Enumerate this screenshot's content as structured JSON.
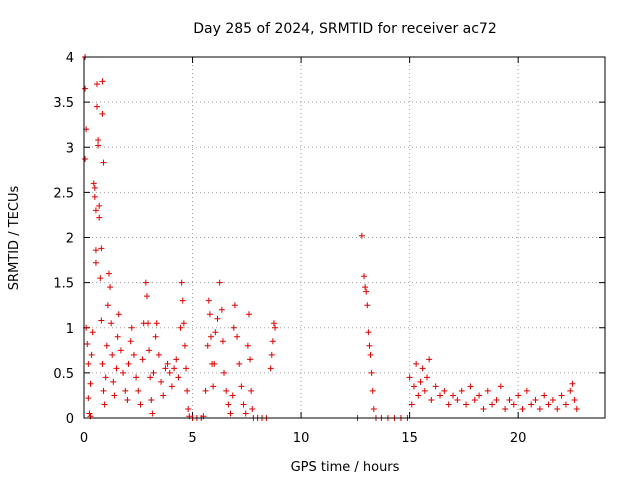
{
  "chart_data": {
    "type": "scatter",
    "title": "Day 285 of 2024, SRMTID for receiver ac72",
    "xlabel": "GPS time / hours",
    "ylabel": "SRMTID / TECUs",
    "xlim": [
      0,
      24
    ],
    "ylim": [
      0,
      4
    ],
    "xticks": [
      0,
      5,
      10,
      15,
      20
    ],
    "yticks": [
      0,
      0.5,
      1,
      1.5,
      2,
      2.5,
      3,
      3.5,
      4
    ],
    "grid": true,
    "legend": "none",
    "marker": "+",
    "color": "#e00000",
    "series": [
      {
        "points": [
          [
            0.05,
            4.0
          ],
          [
            0.05,
            3.65
          ],
          [
            0.1,
            3.2
          ],
          [
            0.05,
            2.87
          ],
          [
            0.1,
            1.0
          ],
          [
            0.15,
            0.82
          ],
          [
            0.2,
            0.6
          ],
          [
            0.2,
            0.22
          ],
          [
            0.25,
            0.05
          ],
          [
            0.3,
            0.02
          ],
          [
            0.3,
            0.38
          ],
          [
            0.35,
            0.7
          ],
          [
            0.4,
            0.95
          ],
          [
            0.45,
            2.6
          ],
          [
            0.5,
            2.55
          ],
          [
            0.5,
            2.45
          ],
          [
            0.55,
            2.3
          ],
          [
            0.55,
            1.86
          ],
          [
            0.55,
            1.72
          ],
          [
            0.6,
            3.7
          ],
          [
            0.6,
            3.45
          ],
          [
            0.65,
            3.08
          ],
          [
            0.65,
            3.02
          ],
          [
            0.7,
            2.35
          ],
          [
            0.7,
            2.22
          ],
          [
            0.75,
            1.55
          ],
          [
            0.8,
            1.88
          ],
          [
            0.85,
            3.73
          ],
          [
            0.85,
            3.37
          ],
          [
            0.9,
            2.83
          ],
          [
            0.8,
            1.08
          ],
          [
            0.85,
            0.6
          ],
          [
            0.9,
            0.3
          ],
          [
            0.95,
            0.15
          ],
          [
            1.0,
            0.45
          ],
          [
            1.05,
            0.8
          ],
          [
            1.1,
            1.25
          ],
          [
            1.15,
            1.6
          ],
          [
            1.2,
            1.45
          ],
          [
            1.25,
            1.05
          ],
          [
            1.3,
            0.7
          ],
          [
            1.35,
            0.4
          ],
          [
            1.4,
            0.25
          ],
          [
            1.5,
            0.55
          ],
          [
            1.55,
            0.9
          ],
          [
            1.6,
            1.15
          ],
          [
            1.7,
            0.75
          ],
          [
            1.8,
            0.5
          ],
          [
            1.9,
            0.3
          ],
          [
            2.0,
            0.2
          ],
          [
            2.05,
            0.6
          ],
          [
            2.15,
            0.85
          ],
          [
            2.2,
            1.0
          ],
          [
            2.3,
            0.7
          ],
          [
            2.4,
            0.45
          ],
          [
            2.5,
            0.3
          ],
          [
            2.6,
            0.15
          ],
          [
            2.7,
            0.65
          ],
          [
            2.75,
            1.05
          ],
          [
            2.85,
            1.5
          ],
          [
            2.9,
            1.35
          ],
          [
            2.95,
            1.05
          ],
          [
            3.0,
            0.75
          ],
          [
            3.05,
            0.45
          ],
          [
            3.1,
            0.2
          ],
          [
            3.15,
            0.05
          ],
          [
            3.2,
            0.5
          ],
          [
            3.3,
            0.9
          ],
          [
            3.35,
            1.05
          ],
          [
            3.45,
            0.7
          ],
          [
            3.55,
            0.4
          ],
          [
            3.65,
            0.25
          ],
          [
            3.75,
            0.55
          ],
          [
            3.85,
            0.6
          ],
          [
            3.95,
            0.5
          ],
          [
            4.05,
            0.35
          ],
          [
            4.15,
            0.55
          ],
          [
            4.25,
            0.65
          ],
          [
            4.35,
            0.45
          ],
          [
            4.45,
            1.0
          ],
          [
            4.5,
            1.5
          ],
          [
            4.55,
            1.3
          ],
          [
            4.6,
            1.05
          ],
          [
            4.65,
            0.8
          ],
          [
            4.7,
            0.55
          ],
          [
            4.75,
            0.3
          ],
          [
            4.8,
            0.1
          ],
          [
            4.85,
            0.02
          ],
          [
            5.0,
            0.0
          ],
          [
            5.2,
            0.0
          ],
          [
            5.4,
            0.0
          ],
          [
            5.5,
            0.02
          ],
          [
            5.6,
            0.3
          ],
          [
            5.7,
            0.8
          ],
          [
            5.75,
            1.3
          ],
          [
            5.8,
            1.15
          ],
          [
            5.85,
            0.9
          ],
          [
            5.9,
            0.6
          ],
          [
            5.95,
            0.35
          ],
          [
            6.0,
            0.6
          ],
          [
            6.05,
            0.95
          ],
          [
            6.15,
            1.1
          ],
          [
            6.25,
            1.5
          ],
          [
            6.35,
            1.2
          ],
          [
            6.4,
            0.85
          ],
          [
            6.45,
            0.5
          ],
          [
            6.55,
            0.3
          ],
          [
            6.65,
            0.15
          ],
          [
            6.75,
            0.05
          ],
          [
            6.85,
            0.25
          ],
          [
            6.9,
            1.0
          ],
          [
            6.95,
            1.25
          ],
          [
            7.05,
            0.9
          ],
          [
            7.15,
            0.6
          ],
          [
            7.25,
            0.35
          ],
          [
            7.35,
            0.15
          ],
          [
            7.45,
            0.05
          ],
          [
            7.55,
            0.8
          ],
          [
            7.6,
            1.15
          ],
          [
            7.65,
            0.65
          ],
          [
            7.7,
            0.3
          ],
          [
            7.75,
            0.1
          ],
          [
            7.8,
            0.0
          ],
          [
            8.0,
            0.0
          ],
          [
            8.2,
            0.0
          ],
          [
            8.4,
            0.0
          ],
          [
            8.6,
            0.55
          ],
          [
            8.65,
            0.7
          ],
          [
            8.7,
            0.85
          ],
          [
            8.75,
            1.05
          ],
          [
            8.8,
            1.0
          ],
          [
            12.6,
            0.0
          ],
          [
            12.8,
            2.02
          ],
          [
            12.9,
            1.57
          ],
          [
            12.95,
            1.45
          ],
          [
            13.0,
            1.4
          ],
          [
            13.05,
            1.25
          ],
          [
            13.1,
            0.95
          ],
          [
            13.15,
            0.8
          ],
          [
            13.2,
            0.7
          ],
          [
            13.25,
            0.5
          ],
          [
            13.3,
            0.3
          ],
          [
            13.35,
            0.1
          ],
          [
            13.45,
            0.0
          ],
          [
            13.7,
            0.0
          ],
          [
            14.0,
            0.0
          ],
          [
            14.3,
            0.0
          ],
          [
            14.6,
            0.0
          ],
          [
            14.9,
            0.0
          ],
          [
            15.0,
            0.45
          ],
          [
            15.1,
            0.15
          ],
          [
            15.2,
            0.35
          ],
          [
            15.3,
            0.6
          ],
          [
            15.4,
            0.25
          ],
          [
            15.5,
            0.4
          ],
          [
            15.6,
            0.55
          ],
          [
            15.7,
            0.3
          ],
          [
            15.8,
            0.45
          ],
          [
            15.9,
            0.65
          ],
          [
            16.0,
            0.2
          ],
          [
            16.2,
            0.35
          ],
          [
            16.4,
            0.25
          ],
          [
            16.6,
            0.3
          ],
          [
            16.8,
            0.15
          ],
          [
            17.0,
            0.25
          ],
          [
            17.2,
            0.2
          ],
          [
            17.4,
            0.3
          ],
          [
            17.6,
            0.15
          ],
          [
            17.8,
            0.35
          ],
          [
            18.0,
            0.2
          ],
          [
            18.2,
            0.25
          ],
          [
            18.4,
            0.1
          ],
          [
            18.6,
            0.3
          ],
          [
            18.8,
            0.15
          ],
          [
            19.0,
            0.2
          ],
          [
            19.2,
            0.35
          ],
          [
            19.4,
            0.1
          ],
          [
            19.6,
            0.2
          ],
          [
            19.8,
            0.15
          ],
          [
            20.0,
            0.25
          ],
          [
            20.2,
            0.1
          ],
          [
            20.4,
            0.3
          ],
          [
            20.6,
            0.15
          ],
          [
            20.8,
            0.2
          ],
          [
            21.0,
            0.1
          ],
          [
            21.2,
            0.25
          ],
          [
            21.4,
            0.15
          ],
          [
            21.6,
            0.2
          ],
          [
            21.8,
            0.1
          ],
          [
            22.0,
            0.25
          ],
          [
            22.2,
            0.15
          ],
          [
            22.4,
            0.3
          ],
          [
            22.5,
            0.38
          ],
          [
            22.6,
            0.2
          ],
          [
            22.7,
            0.1
          ]
        ]
      }
    ]
  }
}
